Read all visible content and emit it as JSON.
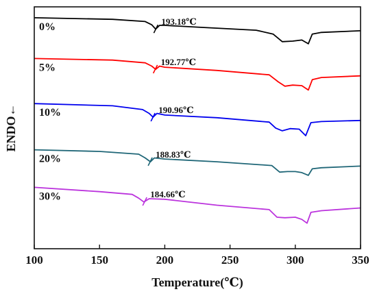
{
  "chart_data": {
    "type": "line",
    "title": "",
    "xlabel": "Temperature(℃)",
    "ylabel": "ENDO←",
    "xlim": [
      100,
      350
    ],
    "xticks": [
      100,
      150,
      200,
      250,
      300,
      350
    ],
    "yticks_shown": false,
    "grid": false,
    "legend": "none; series labelled inline at left",
    "series": [
      {
        "name": "0%",
        "color": "#000000",
        "tg_label": "193.18℃",
        "tg_x": 193.18,
        "points": [
          [
            100,
            0.0
          ],
          [
            160,
            -0.6
          ],
          [
            185,
            -1.4
          ],
          [
            190,
            -2.6
          ],
          [
            193,
            -4.2
          ],
          [
            196,
            -2.8
          ],
          [
            200,
            -2.8
          ],
          [
            230,
            -3.6
          ],
          [
            270,
            -4.6
          ],
          [
            283,
            -6.0
          ],
          [
            290,
            -8.8
          ],
          [
            298,
            -8.6
          ],
          [
            305,
            -8.2
          ],
          [
            310,
            -9.6
          ],
          [
            313,
            -6.0
          ],
          [
            320,
            -5.4
          ],
          [
            350,
            -4.8
          ]
        ]
      },
      {
        "name": "5%",
        "color": "#ff0000",
        "tg_label": "192.77℃",
        "tg_x": 192.77,
        "points": [
          [
            100,
            -15.0
          ],
          [
            160,
            -15.6
          ],
          [
            185,
            -16.6
          ],
          [
            190,
            -17.8
          ],
          [
            193,
            -19.0
          ],
          [
            196,
            -17.8
          ],
          [
            200,
            -18.2
          ],
          [
            240,
            -19.4
          ],
          [
            280,
            -21.0
          ],
          [
            287,
            -23.6
          ],
          [
            292,
            -25.2
          ],
          [
            298,
            -24.8
          ],
          [
            305,
            -25.0
          ],
          [
            310,
            -26.6
          ],
          [
            313,
            -22.8
          ],
          [
            320,
            -22.0
          ],
          [
            350,
            -21.4
          ]
        ]
      },
      {
        "name": "10%",
        "color": "#0000ee",
        "tg_label": "190.96℃",
        "tg_x": 190.96,
        "points": [
          [
            100,
            -31.6
          ],
          [
            160,
            -32.4
          ],
          [
            183,
            -33.8
          ],
          [
            188,
            -35.2
          ],
          [
            191,
            -36.6
          ],
          [
            194,
            -35.2
          ],
          [
            200,
            -35.8
          ],
          [
            240,
            -36.8
          ],
          [
            280,
            -38.4
          ],
          [
            285,
            -40.6
          ],
          [
            290,
            -41.6
          ],
          [
            296,
            -40.8
          ],
          [
            303,
            -41.0
          ],
          [
            308,
            -43.4
          ],
          [
            312,
            -38.6
          ],
          [
            320,
            -38.2
          ],
          [
            350,
            -37.8
          ]
        ]
      },
      {
        "name": "20%",
        "color": "#1f6677",
        "tg_label": "188.83℃",
        "tg_x": 188.83,
        "points": [
          [
            100,
            -48.6
          ],
          [
            150,
            -49.2
          ],
          [
            180,
            -50.2
          ],
          [
            185,
            -51.6
          ],
          [
            189,
            -53.0
          ],
          [
            192,
            -51.6
          ],
          [
            200,
            -52.0
          ],
          [
            240,
            -53.0
          ],
          [
            282,
            -54.4
          ],
          [
            288,
            -56.8
          ],
          [
            294,
            -56.6
          ],
          [
            300,
            -56.6
          ],
          [
            305,
            -57.0
          ],
          [
            310,
            -58.0
          ],
          [
            313,
            -55.6
          ],
          [
            320,
            -55.2
          ],
          [
            350,
            -54.6
          ]
        ]
      },
      {
        "name": "30%",
        "color": "#bb33dd",
        "tg_label": "184.66℃",
        "tg_x": 184.66,
        "points": [
          [
            100,
            -62.4
          ],
          [
            150,
            -64.0
          ],
          [
            175,
            -65.0
          ],
          [
            180,
            -66.4
          ],
          [
            184,
            -67.8
          ],
          [
            188,
            -66.6
          ],
          [
            200,
            -66.8
          ],
          [
            240,
            -69.0
          ],
          [
            280,
            -70.6
          ],
          [
            286,
            -73.4
          ],
          [
            292,
            -73.6
          ],
          [
            300,
            -73.4
          ],
          [
            305,
            -74.2
          ],
          [
            309,
            -75.6
          ],
          [
            312,
            -71.6
          ],
          [
            320,
            -71.0
          ],
          [
            350,
            -70.0
          ]
        ]
      }
    ]
  }
}
